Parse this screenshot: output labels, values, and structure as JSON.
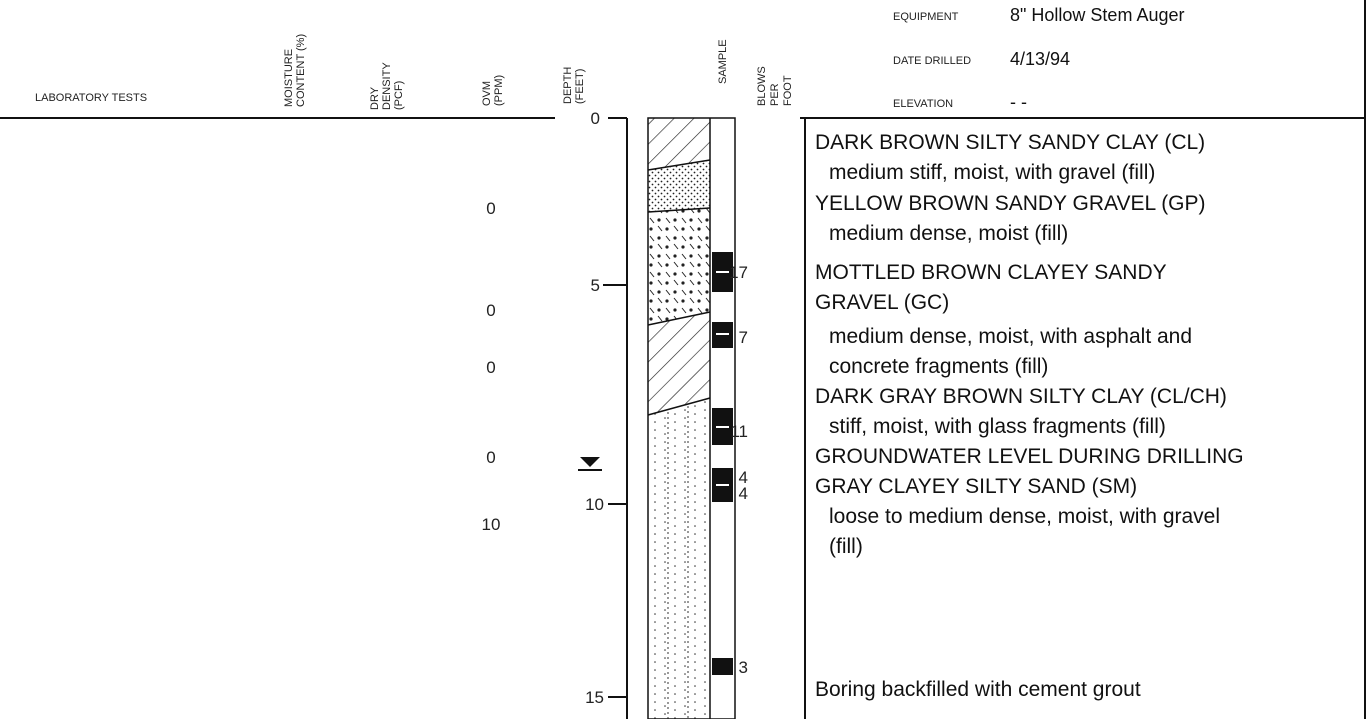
{
  "header": {
    "lab_tests": "LABORATORY TESTS",
    "columns": [
      {
        "lines": [
          "MOISTURE",
          "CONTENT (%)"
        ]
      },
      {
        "lines": [
          "DRY",
          "DENSITY",
          "(PCF)"
        ]
      },
      {
        "lines": [
          "OVM",
          "(PPM)"
        ]
      },
      {
        "lines": [
          "DEPTH",
          "(FEET)"
        ]
      },
      {
        "lines": [
          "SAMPLE"
        ]
      },
      {
        "lines": [
          "BLOWS",
          "PER",
          "FOOT"
        ]
      }
    ],
    "info": [
      {
        "label": "EQUIPMENT",
        "value": "8\" Hollow Stem Auger"
      },
      {
        "label": "DATE DRILLED",
        "value": "4/13/94"
      },
      {
        "label": "ELEVATION",
        "value": "- -"
      }
    ]
  },
  "depth_ticks": [
    "0",
    "5",
    "10",
    "15"
  ],
  "ovm_values": [
    "0",
    "0",
    "0",
    "0",
    "10"
  ],
  "blows": [
    "17",
    "7",
    "11",
    "4",
    "4",
    "3"
  ],
  "descriptions": [
    "DARK BROWN SILTY SANDY CLAY (CL)",
    "medium stiff, moist, with gravel (fill)",
    "YELLOW BROWN SANDY GRAVEL (GP)",
    "medium dense, moist (fill)",
    "MOTTLED BROWN CLAYEY SANDY",
    "GRAVEL (GC)",
    "medium dense, moist, with asphalt and",
    "concrete fragments (fill)",
    "DARK GRAY BROWN SILTY CLAY (CL/CH)",
    "stiff, moist, with glass fragments (fill)",
    "GROUNDWATER LEVEL DURING DRILLING",
    "GRAY CLAYEY SILTY SAND (SM)",
    "loose to medium dense, moist, with gravel",
    "(fill)",
    "Boring backfilled with cement grout"
  ]
}
